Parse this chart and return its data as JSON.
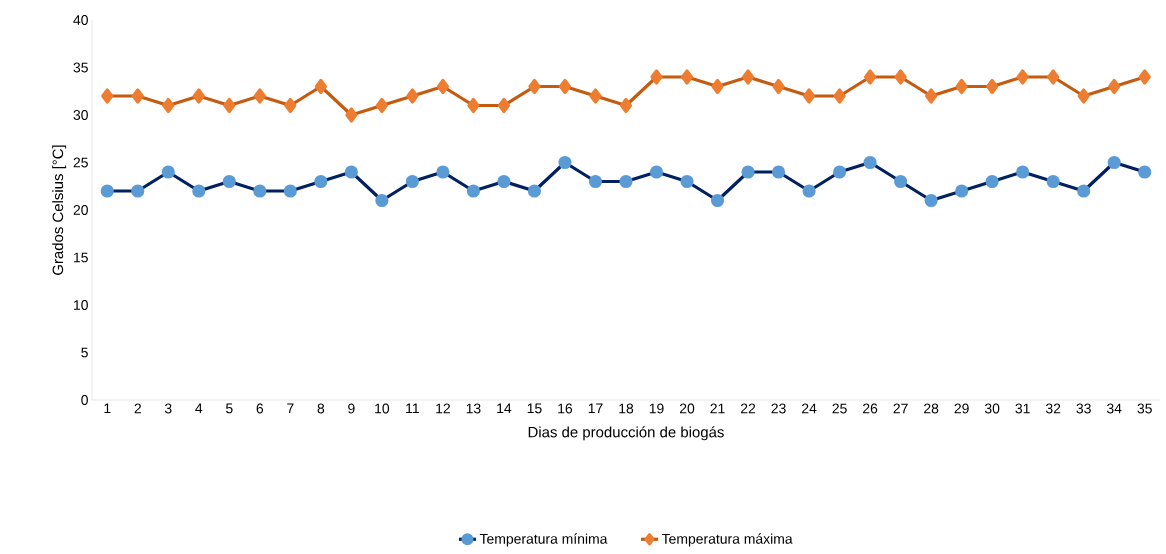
{
  "chart_data": {
    "type": "line",
    "xlabel": "Dias de producción de biogás",
    "ylabel": "Grados Celsius [°C]",
    "categories": [
      "1",
      "2",
      "3",
      "4",
      "5",
      "6",
      "7",
      "8",
      "9",
      "10",
      "11",
      "12",
      "13",
      "14",
      "15",
      "16",
      "17",
      "18",
      "19",
      "20",
      "21",
      "22",
      "23",
      "24",
      "25",
      "26",
      "27",
      "28",
      "29",
      "30",
      "31",
      "32",
      "33",
      "34",
      "35"
    ],
    "series": [
      {
        "name": "Temperatura mínima",
        "color": "#002060",
        "marker": "circle",
        "values": [
          22,
          22,
          24,
          22,
          23,
          22,
          22,
          23,
          24,
          21,
          23,
          24,
          22,
          23,
          22,
          25,
          23,
          23,
          24,
          23,
          21,
          24,
          24,
          22,
          24,
          25,
          23,
          21,
          22,
          23,
          24,
          23,
          22,
          25,
          24
        ]
      },
      {
        "name": "Temperatura máxima",
        "color": "#c55a11",
        "marker": "diamond",
        "values": [
          32,
          32,
          31,
          32,
          31,
          32,
          31,
          33,
          30,
          31,
          32,
          33,
          31,
          31,
          33,
          33,
          32,
          31,
          34,
          34,
          33,
          34,
          33,
          32,
          32,
          34,
          34,
          32,
          33,
          33,
          34,
          34,
          32,
          33,
          34
        ]
      }
    ],
    "ylim": [
      0,
      40
    ],
    "yticks": [
      0,
      5,
      10,
      15,
      20,
      25,
      30,
      35,
      40
    ],
    "grid": false,
    "legend": "bottom",
    "line_style": "solid"
  }
}
